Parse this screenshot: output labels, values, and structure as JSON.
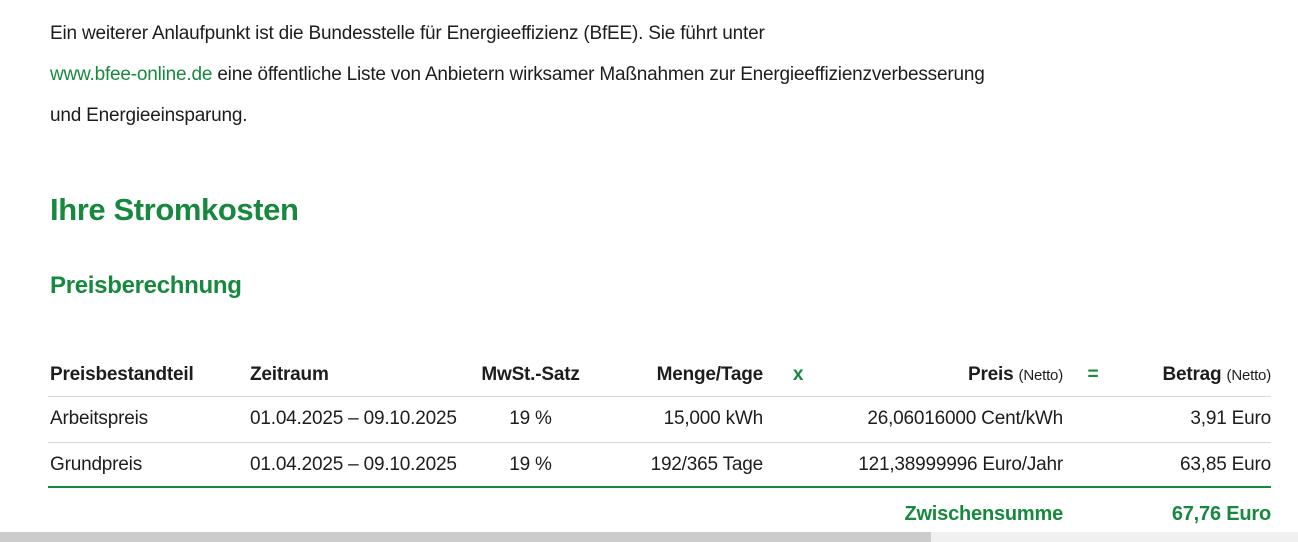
{
  "intro": {
    "line1": "Ein weiterer Anlaufpunkt ist die Bundesstelle für Energieeffizienz (BfEE). Sie führt unter",
    "link_text": "www.bfee-online.de",
    "line2_rest": " eine öffentliche Liste von Anbietern wirksamer Maßnahmen zur Energieeffizienzverbesserung",
    "line3": "und Energieeinsparung."
  },
  "section": {
    "title": "Ihre Stromkosten",
    "subtitle": "Preisberechnung"
  },
  "table": {
    "headers": {
      "component": "Preisbestandteil",
      "period": "Zeitraum",
      "vat": "MwSt.-Satz",
      "quantity": "Menge/Tage",
      "times_symbol": "x",
      "price": "Preis",
      "price_suffix": "(Netto)",
      "equals_symbol": "=",
      "amount": "Betrag",
      "amount_suffix": "(Netto)"
    },
    "rows": [
      {
        "component": "Arbeitspreis",
        "period": "01.04.2025 – 09.10.2025",
        "vat": "19 %",
        "quantity": "15,000 kWh",
        "price": "26,06016000 Cent/kWh",
        "amount": "3,91 Euro"
      },
      {
        "component": "Grundpreis",
        "period": "01.04.2025 – 09.10.2025",
        "vat": "19 %",
        "quantity": "192/365 Tage",
        "price": "121,38999996 Euro/Jahr",
        "amount": "63,85 Euro"
      }
    ],
    "subtotal": {
      "label": "Zwischensumme",
      "amount": "67,76 Euro"
    }
  },
  "colors": {
    "accent_green": "#17893e",
    "text": "#1d1d1b",
    "divider": "#d8d8d8",
    "scrollbar_thumb": "#cccccc",
    "scrollbar_track": "#f0f0f0"
  }
}
